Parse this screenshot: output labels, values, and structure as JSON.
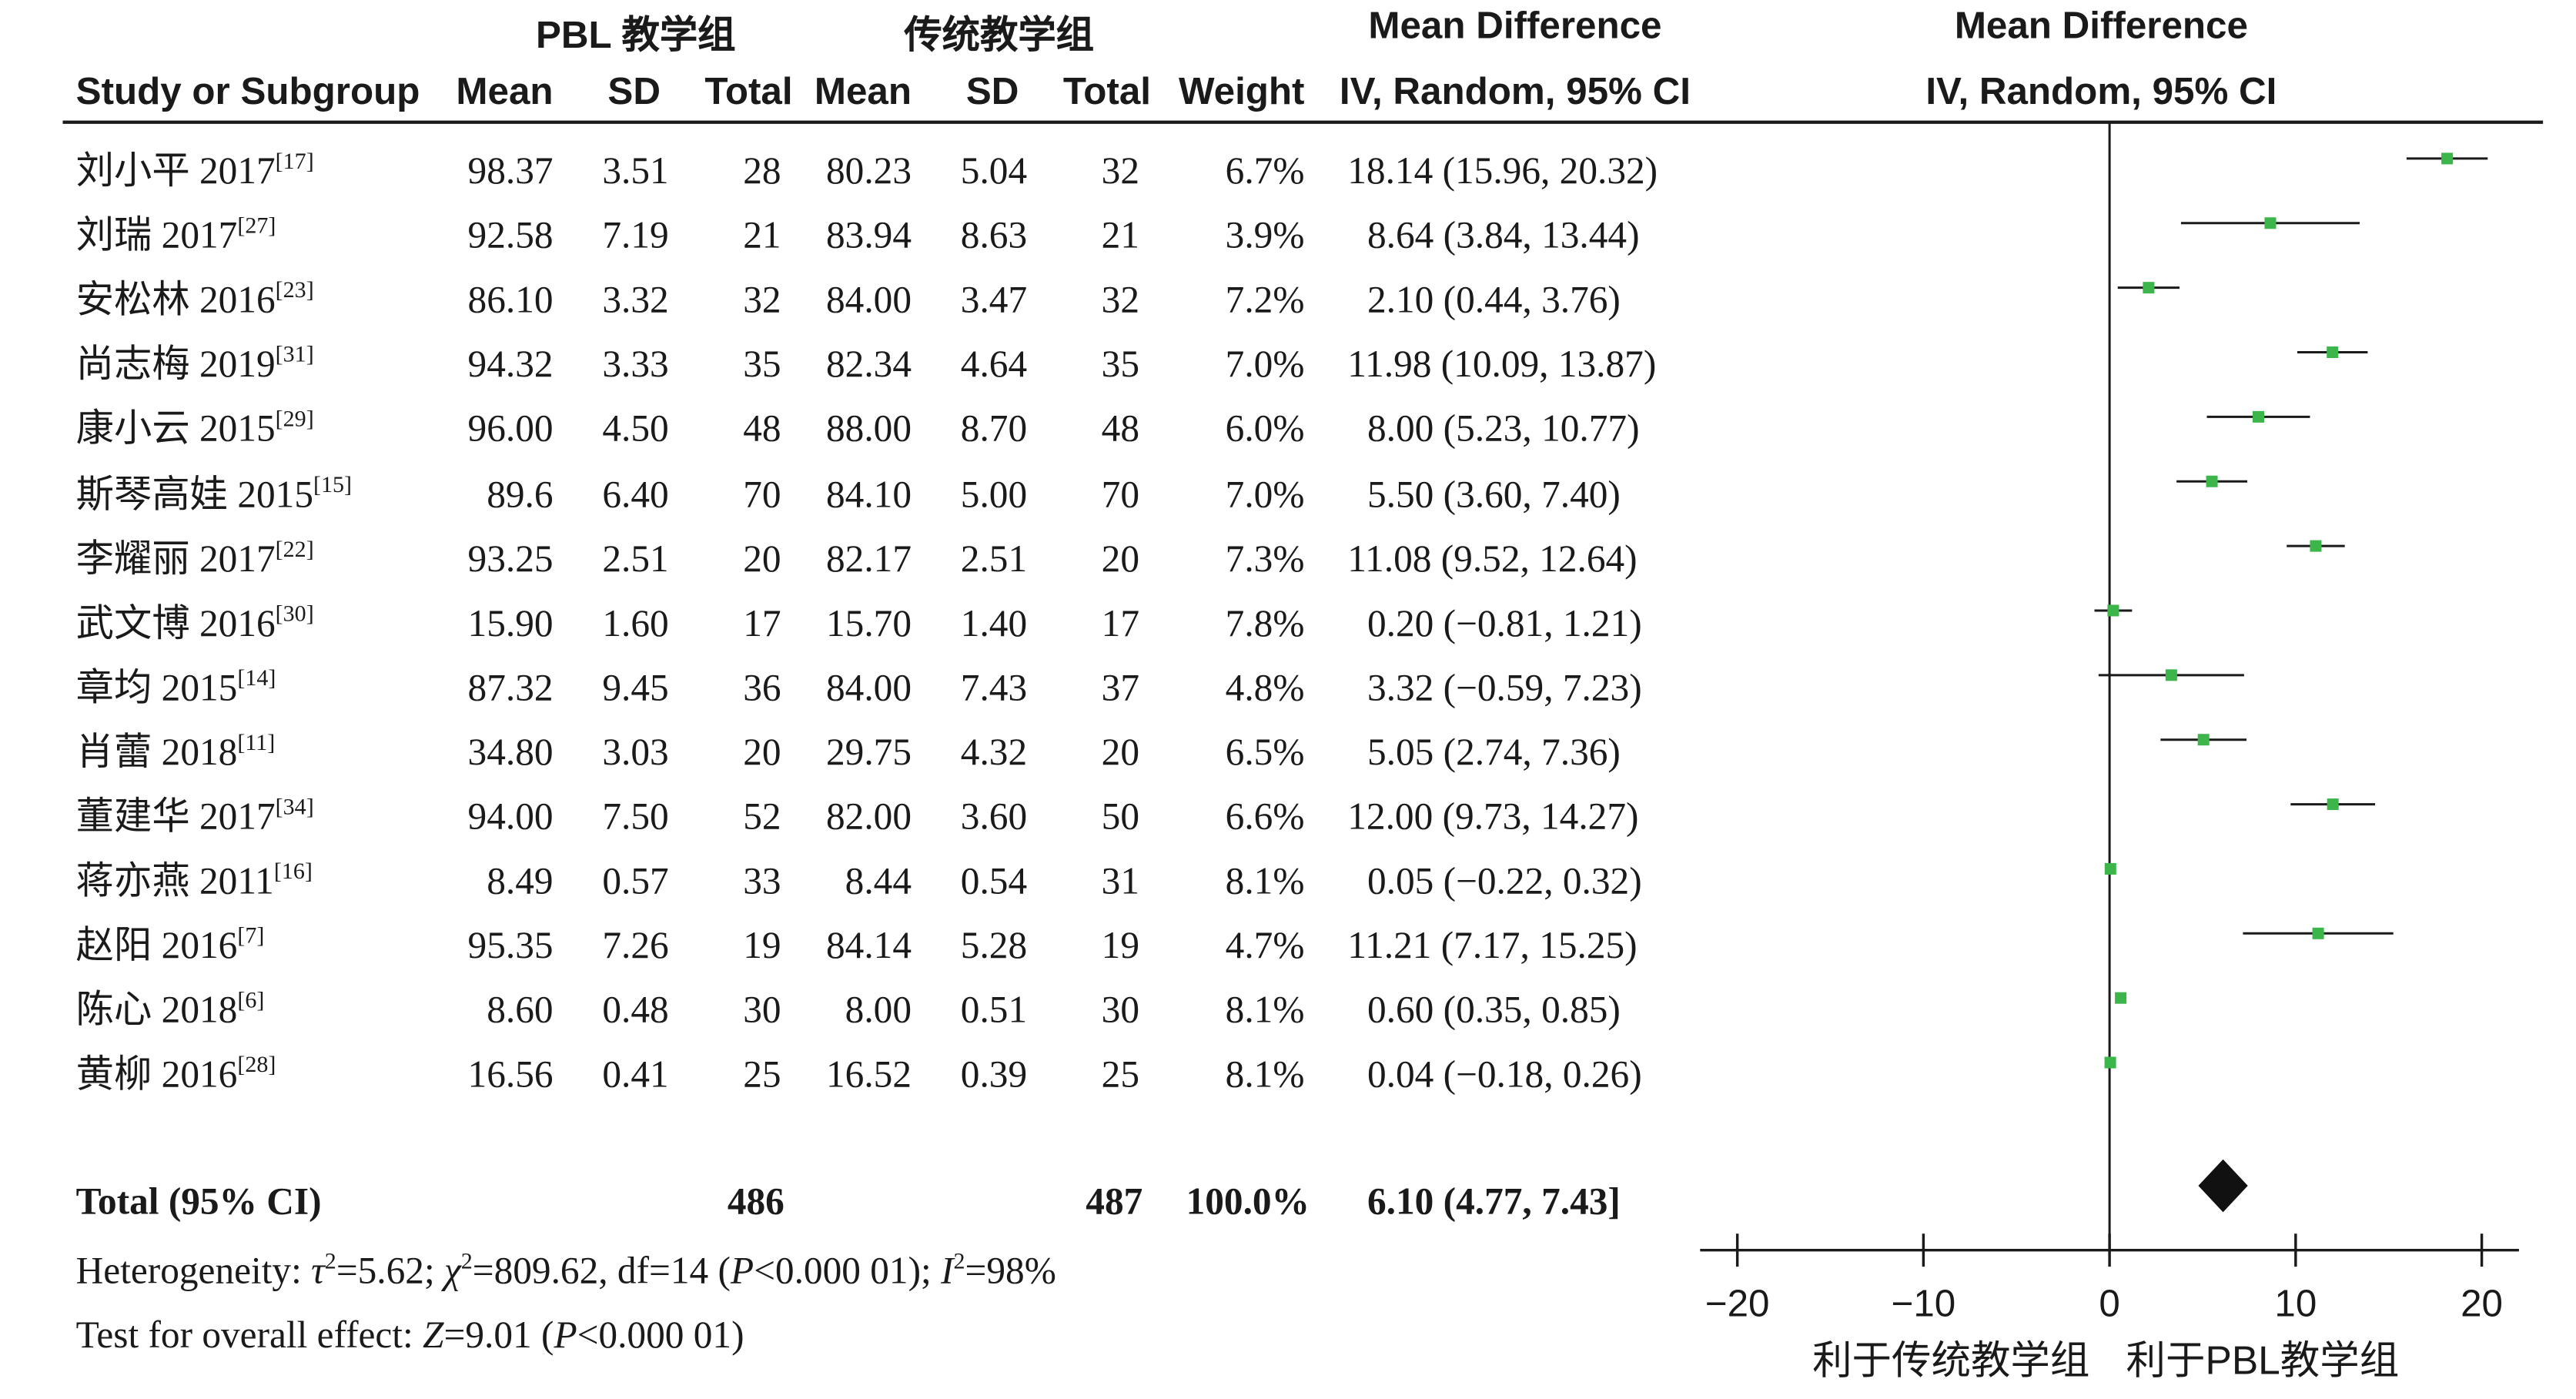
{
  "headers": {
    "group1": "PBL 教学组",
    "group2": "传统教学组",
    "md_col": "Mean Difference",
    "md_col_sub": "IV, Random, 95% CI",
    "plot_col": "Mean Difference",
    "plot_col_sub": "IV, Random, 95% CI",
    "study": "Study or Subgroup",
    "mean1": "Mean",
    "sd1": "SD",
    "total1": "Total",
    "mean2": "Mean",
    "sd2": "SD",
    "total2": "Total",
    "weight": "Weight"
  },
  "studies": [
    {
      "name": "刘小平 2017",
      "ref": "[17]",
      "m1": "98.37",
      "sd1": "3.51",
      "n1": "28",
      "m2": "80.23",
      "sd2": "5.04",
      "n2": "32",
      "weight": "6.7%",
      "ci": "18.14 (15.96, 20.32)"
    },
    {
      "name": "刘瑞 2017",
      "ref": "[27]",
      "m1": "92.58",
      "sd1": "7.19",
      "n1": "21",
      "m2": "83.94",
      "sd2": "8.63",
      "n2": "21",
      "weight": "3.9%",
      "ci": "8.64 (3.84, 13.44)"
    },
    {
      "name": "安松林 2016",
      "ref": "[23]",
      "m1": "86.10",
      "sd1": "3.32",
      "n1": "32",
      "m2": "84.00",
      "sd2": "3.47",
      "n2": "32",
      "weight": "7.2%",
      "ci": "2.10 (0.44, 3.76)"
    },
    {
      "name": "尚志梅 2019",
      "ref": "[31]",
      "m1": "94.32",
      "sd1": "3.33",
      "n1": "35",
      "m2": "82.34",
      "sd2": "4.64",
      "n2": "35",
      "weight": "7.0%",
      "ci": "11.98 (10.09, 13.87)"
    },
    {
      "name": "康小云 2015",
      "ref": "[29]",
      "m1": "96.00",
      "sd1": "4.50",
      "n1": "48",
      "m2": "88.00",
      "sd2": "8.70",
      "n2": "48",
      "weight": "6.0%",
      "ci": "8.00 (5.23, 10.77)"
    },
    {
      "name": "斯琴高娃 2015",
      "ref": "[15]",
      "m1": "89.6",
      "sd1": "6.40",
      "n1": "70",
      "m2": "84.10",
      "sd2": "5.00",
      "n2": "70",
      "weight": "7.0%",
      "ci": "5.50 (3.60, 7.40)"
    },
    {
      "name": "李耀丽 2017",
      "ref": "[22]",
      "m1": "93.25",
      "sd1": "2.51",
      "n1": "20",
      "m2": "82.17",
      "sd2": "2.51",
      "n2": "20",
      "weight": "7.3%",
      "ci": "11.08 (9.52, 12.64)"
    },
    {
      "name": "武文博 2016",
      "ref": "[30]",
      "m1": "15.90",
      "sd1": "1.60",
      "n1": "17",
      "m2": "15.70",
      "sd2": "1.40",
      "n2": "17",
      "weight": "7.8%",
      "ci": "0.20 (−0.81, 1.21)"
    },
    {
      "name": "章均 2015",
      "ref": "[14]",
      "m1": "87.32",
      "sd1": "9.45",
      "n1": "36",
      "m2": "84.00",
      "sd2": "7.43",
      "n2": "37",
      "weight": "4.8%",
      "ci": "3.32 (−0.59, 7.23)"
    },
    {
      "name": "肖蕾 2018",
      "ref": "[11]",
      "m1": "34.80",
      "sd1": "3.03",
      "n1": "20",
      "m2": "29.75",
      "sd2": "4.32",
      "n2": "20",
      "weight": "6.5%",
      "ci": "5.05 (2.74, 7.36)"
    },
    {
      "name": "董建华 2017",
      "ref": "[34]",
      "m1": "94.00",
      "sd1": "7.50",
      "n1": "52",
      "m2": "82.00",
      "sd2": "3.60",
      "n2": "50",
      "weight": "6.6%",
      "ci": "12.00 (9.73, 14.27)"
    },
    {
      "name": "蒋亦燕 2011",
      "ref": "[16]",
      "m1": "8.49",
      "sd1": "0.57",
      "n1": "33",
      "m2": "8.44",
      "sd2": "0.54",
      "n2": "31",
      "weight": "8.1%",
      "ci": "0.05 (−0.22, 0.32)"
    },
    {
      "name": "赵阳 2016",
      "ref": "[7]",
      "m1": "95.35",
      "sd1": "7.26",
      "n1": "19",
      "m2": "84.14",
      "sd2": "5.28",
      "n2": "19",
      "weight": "4.7%",
      "ci": "11.21 (7.17, 15.25)"
    },
    {
      "name": "陈心 2018",
      "ref": "[6]",
      "m1": "8.60",
      "sd1": "0.48",
      "n1": "30",
      "m2": "8.00",
      "sd2": "0.51",
      "n2": "30",
      "weight": "8.1%",
      "ci": "0.60 (0.35, 0.85)"
    },
    {
      "name": "黄柳 2016",
      "ref": "[28]",
      "m1": "16.56",
      "sd1": "0.41",
      "n1": "25",
      "m2": "16.52",
      "sd2": "0.39",
      "n2": "25",
      "weight": "8.1%",
      "ci": "0.04 (−0.18, 0.26)"
    }
  ],
  "total": {
    "label": "Total (95% CI)",
    "n1": "486",
    "n2": "487",
    "weight": "100.0%",
    "ci": "6.10 (4.77, 7.43]"
  },
  "heterogeneity": {
    "prefix": "Heterogeneity: ",
    "tau": "τ",
    "tau_rest": "=5.62; ",
    "chi": "χ",
    "chi_rest": "=809.62, df=14 (",
    "p": "P",
    "p_rest": "<0.000 01); ",
    "i": "I",
    "i_rest": "=98%",
    "sup2": "2"
  },
  "overall": {
    "prefix": "Test for overall effect: ",
    "z": "Z",
    "z_rest": "=9.01 (",
    "p": "P",
    "p_rest": "<0.000 01)"
  },
  "colors": {
    "marker": "#3cb54a",
    "ink": "#1a1a1a"
  },
  "chart_data": {
    "type": "forest",
    "xlim": [
      -22,
      22
    ],
    "ticks": [
      -20,
      -10,
      0,
      10,
      20
    ],
    "tick_labels": [
      "−20",
      "−10",
      "0",
      "10",
      "20"
    ],
    "left_label": "利于传统教学组",
    "right_label": "利于PBL教学组",
    "points": [
      {
        "md": 18.14,
        "lo": 15.96,
        "hi": 20.32
      },
      {
        "md": 8.64,
        "lo": 3.84,
        "hi": 13.44
      },
      {
        "md": 2.1,
        "lo": 0.44,
        "hi": 3.76
      },
      {
        "md": 11.98,
        "lo": 10.09,
        "hi": 13.87
      },
      {
        "md": 8.0,
        "lo": 5.23,
        "hi": 10.77
      },
      {
        "md": 5.5,
        "lo": 3.6,
        "hi": 7.4
      },
      {
        "md": 11.08,
        "lo": 9.52,
        "hi": 12.64
      },
      {
        "md": 0.2,
        "lo": -0.81,
        "hi": 1.21
      },
      {
        "md": 3.32,
        "lo": -0.59,
        "hi": 7.23
      },
      {
        "md": 5.05,
        "lo": 2.74,
        "hi": 7.36
      },
      {
        "md": 12.0,
        "lo": 9.73,
        "hi": 14.27
      },
      {
        "md": 0.05,
        "lo": -0.22,
        "hi": 0.32
      },
      {
        "md": 11.21,
        "lo": 7.17,
        "hi": 15.25
      },
      {
        "md": 0.6,
        "lo": 0.35,
        "hi": 0.85
      },
      {
        "md": 0.04,
        "lo": -0.18,
        "hi": 0.26
      }
    ],
    "diamond": {
      "md": 6.1,
      "lo": 4.77,
      "hi": 7.43
    }
  }
}
